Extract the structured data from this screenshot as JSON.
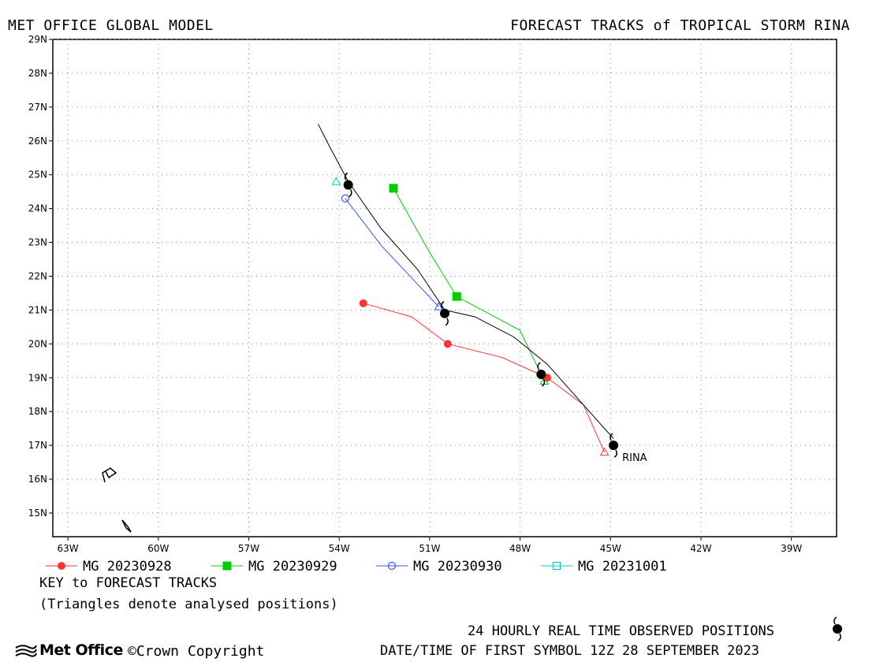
{
  "header": {
    "left": "MET OFFICE GLOBAL MODEL",
    "right": "FORECAST TRACKS of TROPICAL STORM RINA"
  },
  "map": {
    "lon_range": [
      -63.5,
      -37.5
    ],
    "lat_range": [
      14.3,
      29
    ],
    "lon_ticks": [
      "63W",
      "60W",
      "57W",
      "54W",
      "51W",
      "48W",
      "45W",
      "42W",
      "39W"
    ],
    "lat_ticks": [
      "29N",
      "28N",
      "27N",
      "26N",
      "25N",
      "24N",
      "23N",
      "22N",
      "21N",
      "20N",
      "19N",
      "18N",
      "17N",
      "16N",
      "15N"
    ],
    "grid": "dotted",
    "storm_label": "RINA"
  },
  "chart_data": {
    "type": "track-map",
    "observed_track": {
      "points": [
        [
          -44.9,
          17.0
        ],
        [
          -47.3,
          19.1
        ],
        [
          -50.5,
          20.9
        ],
        [
          -53.7,
          24.7
        ]
      ],
      "path": [
        [
          -44.9,
          17.2
        ],
        [
          -46.0,
          18.3
        ],
        [
          -47.1,
          19.4
        ],
        [
          -48.2,
          20.2
        ],
        [
          -49.5,
          20.8
        ],
        [
          -50.5,
          21.0
        ],
        [
          -51.4,
          22.2
        ],
        [
          -52.6,
          23.4
        ],
        [
          -53.7,
          24.8
        ],
        [
          -54.3,
          25.8
        ],
        [
          -54.7,
          26.5
        ]
      ],
      "symbol_color": "#000000"
    },
    "forecasts": [
      {
        "name": "MG 20230928",
        "color": "#ff3333",
        "marker": "filled-circle",
        "analysed": [
          -45.2,
          16.8
        ],
        "path": [
          [
            -45.2,
            16.8
          ],
          [
            -45.9,
            18.2
          ],
          [
            -47.1,
            19.0
          ],
          [
            -48.6,
            19.6
          ],
          [
            -50.4,
            20.0
          ],
          [
            -51.6,
            20.8
          ],
          [
            -53.2,
            21.2
          ]
        ],
        "markers": [
          [
            -47.1,
            19.0
          ],
          [
            -50.4,
            20.0
          ],
          [
            -53.2,
            21.2
          ]
        ]
      },
      {
        "name": "MG 20230929",
        "color": "#00cc00",
        "marker": "filled-square",
        "analysed": [
          -47.2,
          18.9
        ],
        "path": [
          [
            -47.2,
            18.9
          ],
          [
            -48.0,
            20.4
          ],
          [
            -50.1,
            21.4
          ],
          [
            -51.0,
            22.7
          ],
          [
            -52.2,
            24.6
          ]
        ],
        "markers": [
          [
            -50.1,
            21.4
          ],
          [
            -52.2,
            24.6
          ]
        ]
      },
      {
        "name": "MG 20230930",
        "color": "#3355ff",
        "marker": "open-circle",
        "analysed": [
          -50.7,
          21.1
        ],
        "path": [
          [
            -50.7,
            21.1
          ],
          [
            -52.6,
            22.9
          ],
          [
            -53.8,
            24.3
          ]
        ],
        "markers": [
          [
            -53.8,
            24.3
          ]
        ]
      },
      {
        "name": "MG 20231001",
        "color": "#00cccc",
        "marker": "open-square",
        "analysed": [
          -54.1,
          24.8
        ],
        "path": [
          [
            -54.1,
            24.8
          ]
        ],
        "markers": []
      }
    ]
  },
  "legend": {
    "key_title": "KEY to FORECAST TRACKS",
    "triangles_note": "(Triangles denote analysed positions)"
  },
  "footer": {
    "observed": "24 HOURLY REAL TIME OBSERVED POSITIONS",
    "datetime": "DATE/TIME OF FIRST SYMBOL 12Z 28 SEPTEMBER 2023",
    "logo": "Met Office",
    "copyright": "©Crown Copyright"
  }
}
